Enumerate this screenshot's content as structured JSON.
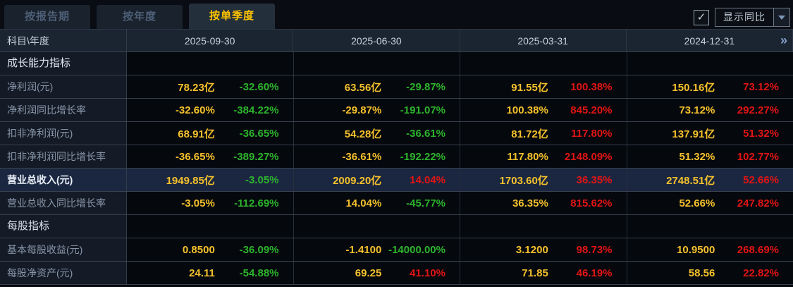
{
  "toolbar": {
    "tabs": [
      {
        "label": "按报告期",
        "active": false
      },
      {
        "label": "按年度",
        "active": false
      },
      {
        "label": "按单季度",
        "active": true
      }
    ],
    "yoy_checkbox": {
      "checked": true,
      "check_glyph": "✓"
    },
    "yoy_dropdown": {
      "selected": "显示同比",
      "arrow_icon": "chevron-down"
    }
  },
  "table": {
    "corner_header": "科目\\年度",
    "columns": [
      "2025-09-30",
      "2025-06-30",
      "2025-03-31",
      "2024-12-31"
    ],
    "more_columns_glyph": "»",
    "rows": [
      {
        "type": "section",
        "label": "成长能力指标",
        "cells": [
          {
            "value": "",
            "yoy": "",
            "yoy_color": ""
          },
          {
            "value": "",
            "yoy": "",
            "yoy_color": ""
          },
          {
            "value": "",
            "yoy": "",
            "yoy_color": ""
          },
          {
            "value": "",
            "yoy": "",
            "yoy_color": ""
          }
        ]
      },
      {
        "type": "data",
        "label": "净利润(元)",
        "cells": [
          {
            "value": "78.23亿",
            "yoy": "-32.60%",
            "yoy_color": "green"
          },
          {
            "value": "63.56亿",
            "yoy": "-29.87%",
            "yoy_color": "green"
          },
          {
            "value": "91.55亿",
            "yoy": "100.38%",
            "yoy_color": "red"
          },
          {
            "value": "150.16亿",
            "yoy": "73.12%",
            "yoy_color": "red"
          }
        ]
      },
      {
        "type": "data",
        "label": "净利润同比增长率",
        "cells": [
          {
            "value": "-32.60%",
            "yoy": "-384.22%",
            "yoy_color": "green"
          },
          {
            "value": "-29.87%",
            "yoy": "-191.07%",
            "yoy_color": "green"
          },
          {
            "value": "100.38%",
            "yoy": "845.20%",
            "yoy_color": "red"
          },
          {
            "value": "73.12%",
            "yoy": "292.27%",
            "yoy_color": "red"
          }
        ]
      },
      {
        "type": "data",
        "label": "扣非净利润(元)",
        "cells": [
          {
            "value": "68.91亿",
            "yoy": "-36.65%",
            "yoy_color": "green"
          },
          {
            "value": "54.28亿",
            "yoy": "-36.61%",
            "yoy_color": "green"
          },
          {
            "value": "81.72亿",
            "yoy": "117.80%",
            "yoy_color": "red"
          },
          {
            "value": "137.91亿",
            "yoy": "51.32%",
            "yoy_color": "red"
          }
        ]
      },
      {
        "type": "data",
        "label": "扣非净利润同比增长率",
        "cells": [
          {
            "value": "-36.65%",
            "yoy": "-389.27%",
            "yoy_color": "green"
          },
          {
            "value": "-36.61%",
            "yoy": "-192.22%",
            "yoy_color": "green"
          },
          {
            "value": "117.80%",
            "yoy": "2148.09%",
            "yoy_color": "red"
          },
          {
            "value": "51.32%",
            "yoy": "102.77%",
            "yoy_color": "red"
          }
        ]
      },
      {
        "type": "highlight",
        "label": "营业总收入(元)",
        "cells": [
          {
            "value": "1949.85亿",
            "yoy": "-3.05%",
            "yoy_color": "green"
          },
          {
            "value": "2009.20亿",
            "yoy": "14.04%",
            "yoy_color": "red"
          },
          {
            "value": "1703.60亿",
            "yoy": "36.35%",
            "yoy_color": "red"
          },
          {
            "value": "2748.51亿",
            "yoy": "52.66%",
            "yoy_color": "red"
          }
        ]
      },
      {
        "type": "data",
        "label": "营业总收入同比增长率",
        "cells": [
          {
            "value": "-3.05%",
            "yoy": "-112.69%",
            "yoy_color": "green"
          },
          {
            "value": "14.04%",
            "yoy": "-45.77%",
            "yoy_color": "green"
          },
          {
            "value": "36.35%",
            "yoy": "815.62%",
            "yoy_color": "red"
          },
          {
            "value": "52.66%",
            "yoy": "247.82%",
            "yoy_color": "red"
          }
        ]
      },
      {
        "type": "section",
        "label": "每股指标",
        "cells": [
          {
            "value": "",
            "yoy": "",
            "yoy_color": ""
          },
          {
            "value": "",
            "yoy": "",
            "yoy_color": ""
          },
          {
            "value": "",
            "yoy": "",
            "yoy_color": ""
          },
          {
            "value": "",
            "yoy": "",
            "yoy_color": ""
          }
        ]
      },
      {
        "type": "data",
        "label": "基本每股收益(元)",
        "cells": [
          {
            "value": "0.8500",
            "yoy": "-36.09%",
            "yoy_color": "green"
          },
          {
            "value": "-1.4100",
            "yoy": "-14000.00%",
            "yoy_color": "green"
          },
          {
            "value": "3.1200",
            "yoy": "98.73%",
            "yoy_color": "red"
          },
          {
            "value": "10.9500",
            "yoy": "268.69%",
            "yoy_color": "red"
          }
        ]
      },
      {
        "type": "data",
        "label": "每股净资产(元)",
        "cells": [
          {
            "value": "24.11",
            "yoy": "-54.88%",
            "yoy_color": "green"
          },
          {
            "value": "69.25",
            "yoy": "41.10%",
            "yoy_color": "red"
          },
          {
            "value": "71.85",
            "yoy": "46.19%",
            "yoy_color": "red"
          },
          {
            "value": "58.56",
            "yoy": "22.82%",
            "yoy_color": "red"
          }
        ]
      }
    ]
  },
  "colors": {
    "value_gold": "#f5c12c",
    "yoy_up_red": "#e21414",
    "yoy_down_green": "#2db42d",
    "active_tab_text": "#ffc400",
    "highlight_row_bg": "#1b2741",
    "header_bg": "#1b2531",
    "more_chevron_blue": "#82a0cc"
  }
}
